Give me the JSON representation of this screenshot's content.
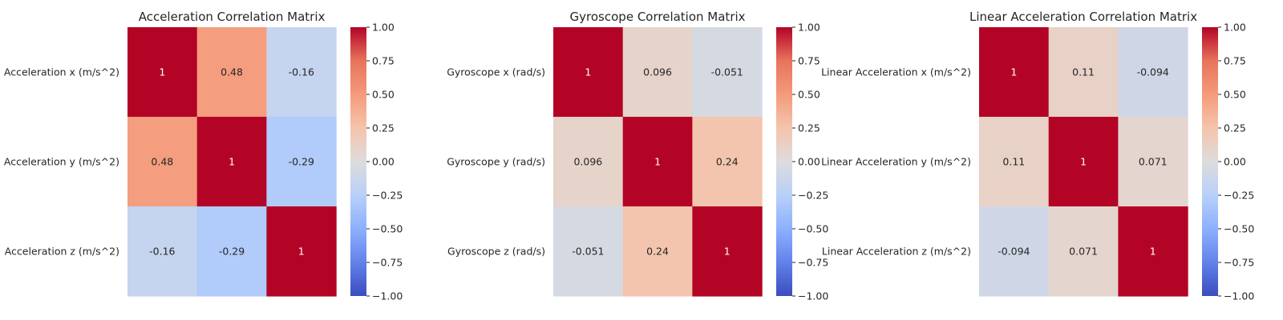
{
  "chart_data": [
    {
      "type": "heatmap",
      "title": "Acceleration Correlation Matrix",
      "row_labels": [
        "Acceleration x (m/s^2)",
        "Acceleration y (m/s^2)",
        "Acceleration z (m/s^2)"
      ],
      "values": [
        [
          1,
          0.48,
          -0.16
        ],
        [
          0.48,
          1,
          -0.29
        ],
        [
          -0.16,
          -0.29,
          1
        ]
      ],
      "value_labels": [
        [
          "1",
          "0.48",
          "-0.16"
        ],
        [
          "0.48",
          "1",
          "-0.29"
        ],
        [
          "-0.16",
          "-0.29",
          "1"
        ]
      ],
      "colorbar": {
        "range": [
          -1,
          1
        ],
        "ticks": [
          "1.00",
          "0.75",
          "0.50",
          "0.25",
          "0.00",
          "−0.25",
          "−0.50",
          "−0.75",
          "−1.00"
        ]
      },
      "colormap": "coolwarm",
      "grid": false
    },
    {
      "type": "heatmap",
      "title": "Gyroscope Correlation Matrix",
      "row_labels": [
        "Gyroscope x (rad/s)",
        "Gyroscope y (rad/s)",
        "Gyroscope z (rad/s)"
      ],
      "values": [
        [
          1,
          0.096,
          -0.051
        ],
        [
          0.096,
          1,
          0.24
        ],
        [
          -0.051,
          0.24,
          1
        ]
      ],
      "value_labels": [
        [
          "1",
          "0.096",
          "-0.051"
        ],
        [
          "0.096",
          "1",
          "0.24"
        ],
        [
          "-0.051",
          "0.24",
          "1"
        ]
      ],
      "colorbar": {
        "range": [
          -1,
          1
        ],
        "ticks": [
          "1.00",
          "0.75",
          "0.50",
          "0.25",
          "0.00",
          "−0.25",
          "−0.50",
          "−0.75",
          "−1.00"
        ]
      },
      "colormap": "coolwarm",
      "grid": false
    },
    {
      "type": "heatmap",
      "title": "Linear Acceleration Correlation Matrix",
      "row_labels": [
        "Linear Acceleration x (m/s^2)",
        "Linear Acceleration y (m/s^2)",
        "Linear Acceleration z (m/s^2)"
      ],
      "values": [
        [
          1,
          0.11,
          -0.094
        ],
        [
          0.11,
          1,
          0.071
        ],
        [
          -0.094,
          0.071,
          1
        ]
      ],
      "value_labels": [
        [
          "1",
          "0.11",
          "-0.094"
        ],
        [
          "0.11",
          "1",
          "0.071"
        ],
        [
          "-0.094",
          "0.071",
          "1"
        ]
      ],
      "colorbar": {
        "range": [
          -1,
          1
        ],
        "ticks": [
          "1.00",
          "0.75",
          "0.50",
          "0.25",
          "0.00",
          "−0.25",
          "−0.50",
          "−0.75",
          "−1.00"
        ]
      },
      "colormap": "coolwarm",
      "grid": false
    }
  ]
}
